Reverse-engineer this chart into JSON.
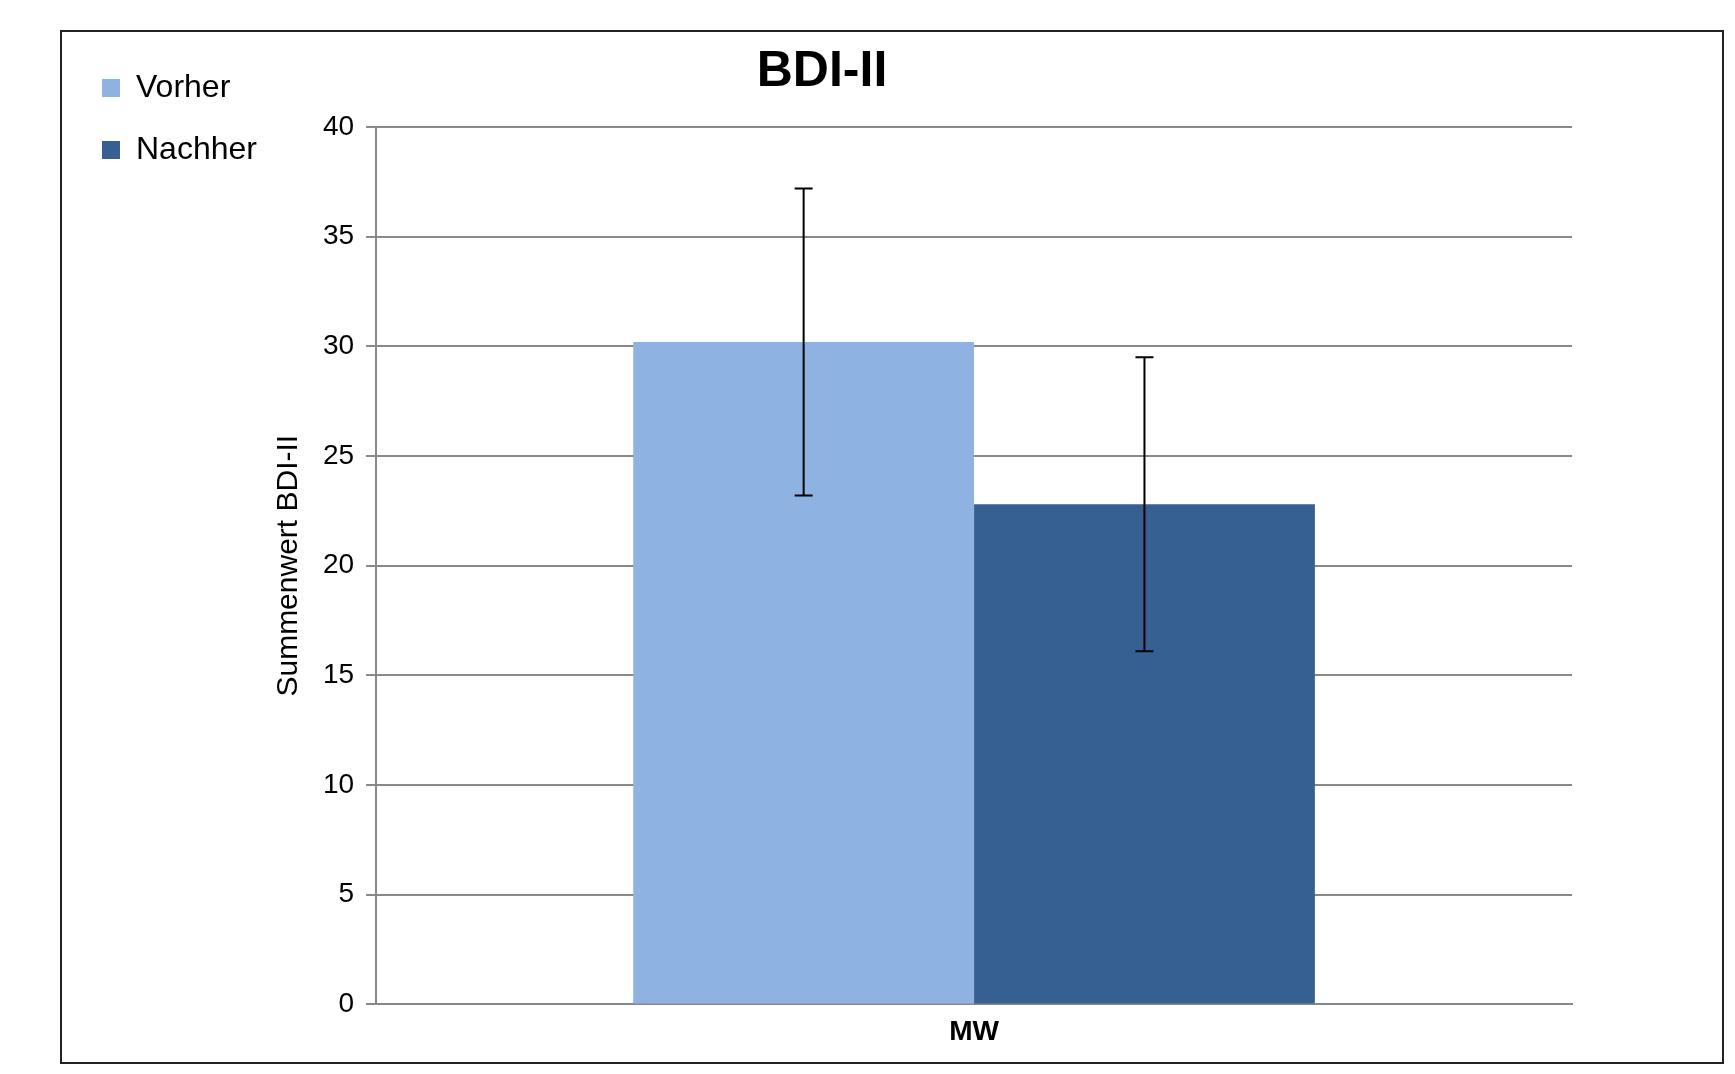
{
  "chart_data": {
    "type": "bar",
    "title": "BDI-II",
    "ylabel": "Summenwert BDI-II",
    "categories": [
      "MW"
    ],
    "series": [
      {
        "name": "Vorher",
        "color": "#8eb3e2",
        "values": [
          30.2
        ],
        "errors": [
          7
        ]
      },
      {
        "name": "Nachher",
        "color": "#376092",
        "values": [
          22.8
        ],
        "errors": [
          6.7
        ]
      }
    ],
    "ylim": [
      0,
      40
    ],
    "yticks": [
      0,
      5,
      10,
      15,
      20,
      25,
      30,
      35,
      40
    ],
    "grid": "y",
    "legend": "top left"
  }
}
